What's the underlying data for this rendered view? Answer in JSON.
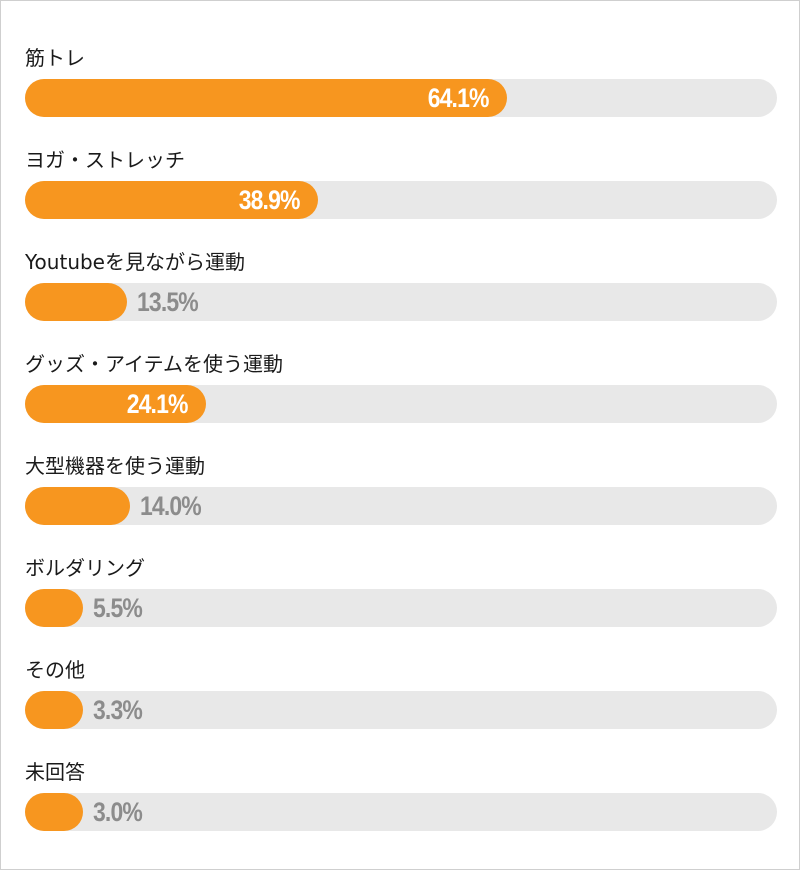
{
  "chart_data": {
    "type": "bar",
    "orientation": "horizontal",
    "categories": [
      "筋トレ",
      "ヨガ・ストレッチ",
      "Youtubeを見ながら運動",
      "グッズ・アイテムを使う運動",
      "大型機器を使う運動",
      "ボルダリング",
      "その他",
      "未回答"
    ],
    "values": [
      64.1,
      38.9,
      13.5,
      24.1,
      14.0,
      5.5,
      3.3,
      3.0
    ],
    "value_labels": [
      "64.1%",
      "38.9%",
      "13.5%",
      "24.1%",
      "14.0%",
      "5.5%",
      "3.3%",
      "3.0%"
    ],
    "xlim": [
      0,
      100
    ],
    "unit": "%",
    "grid": false,
    "colors": {
      "bar": "#f7961f",
      "track": "#e8e8e8",
      "label_inside": "#ffffff",
      "label_outside": "#8c8c8c"
    }
  }
}
